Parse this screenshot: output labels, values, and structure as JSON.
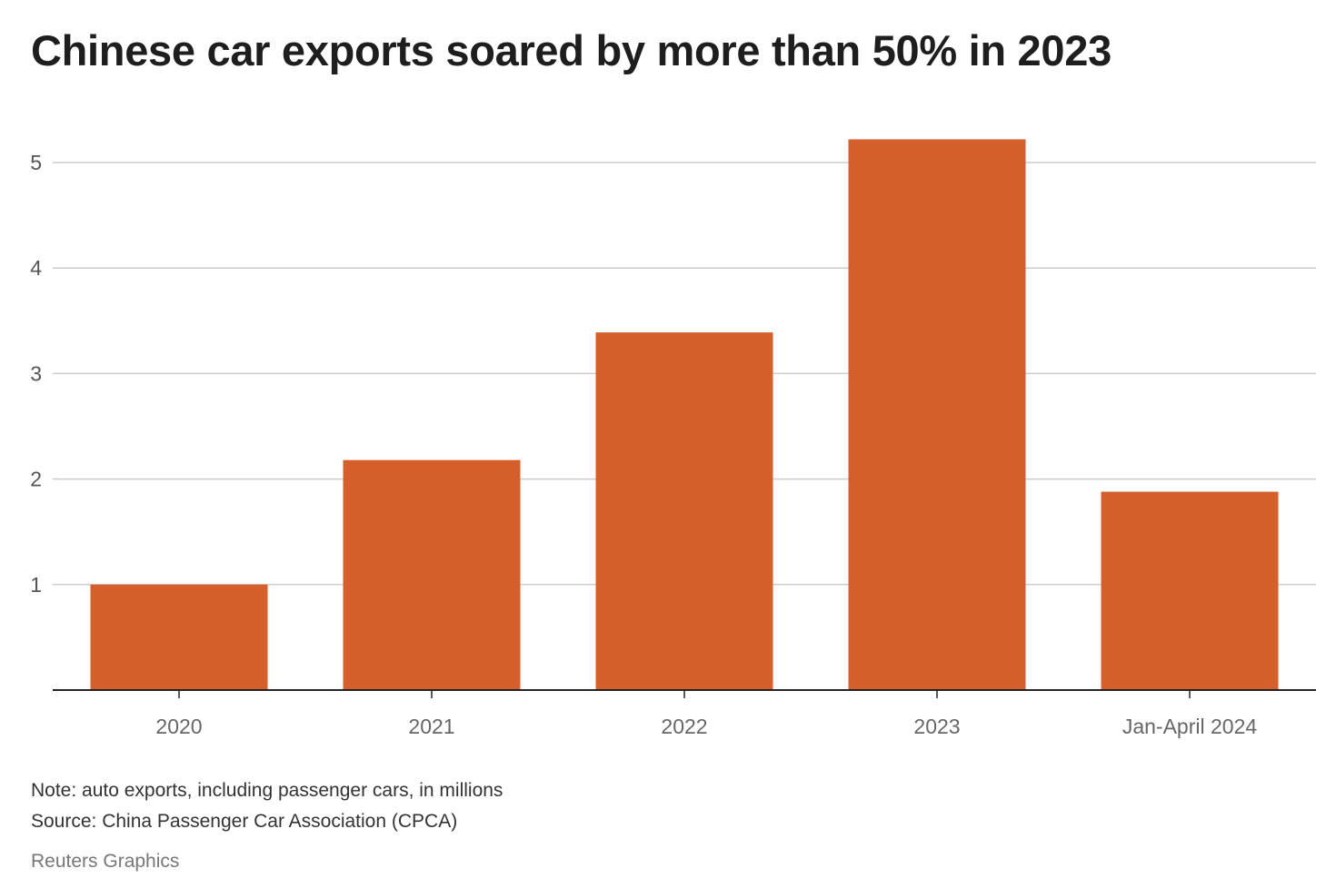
{
  "title": "Chinese car exports soared by more than 50% in 2023",
  "note": "Note: auto exports, including passenger cars, in millions",
  "source": "Source: China Passenger Car Association (CPCA)",
  "credit": "Reuters Graphics",
  "colors": {
    "bar": "#d45f2a",
    "grid": "#cccccc",
    "axis": "#222222"
  },
  "chart_data": {
    "type": "bar",
    "title": "Chinese car exports soared by more than 50% in 2023",
    "xlabel": "",
    "ylabel": "",
    "categories": [
      "2020",
      "2021",
      "2022",
      "2023",
      "Jan-April 2024"
    ],
    "values": [
      1.0,
      2.18,
      3.39,
      5.22,
      1.88
    ],
    "units": "millions",
    "ylim": [
      0,
      5.5
    ],
    "yticks": [
      1,
      2,
      3,
      4,
      5
    ],
    "grid": true,
    "legend": "none"
  }
}
